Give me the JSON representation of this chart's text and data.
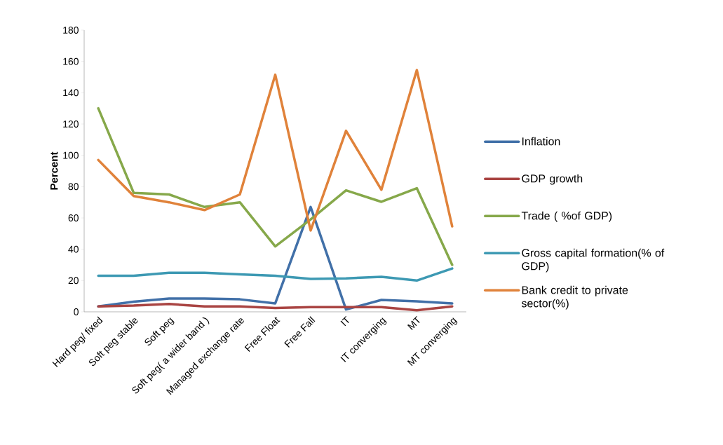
{
  "chart_data": {
    "type": "line",
    "ylabel": "Percent",
    "categories": [
      "Hard peg/ fixed",
      "Soft peg stable",
      "Soft peg",
      "Soft peg( a wider band )",
      "Managed exchange rate",
      "Free Float",
      "Free Fall",
      "IT",
      "IT converging",
      "MT",
      "MT converging"
    ],
    "series": [
      {
        "name": "Inflation",
        "color": "#4170a8",
        "values": [
          3.5,
          6.5,
          8.5,
          8.5,
          8,
          5.4,
          67,
          1.5,
          7.6,
          6.7,
          5.4
        ]
      },
      {
        "name": "GDP growth",
        "color": "#a94442",
        "values": [
          3.5,
          4,
          5,
          3.5,
          3.5,
          2.5,
          3,
          3,
          3,
          1,
          3.5
        ]
      },
      {
        "name": "Trade ( %of GDP)",
        "color": "#86a84a",
        "values": [
          130,
          76,
          75,
          67,
          70,
          41.8,
          59,
          77.6,
          70.3,
          79,
          30
        ]
      },
      {
        "name": "Gross capital formation(% of GDP)",
        "color": "#3d99b3",
        "values": [
          23,
          23,
          25,
          25,
          24,
          23,
          21,
          21.4,
          22.4,
          20,
          27.7
        ]
      },
      {
        "name": "Bank credit to private sector(%)",
        "color": "#e0823a",
        "values": [
          97,
          74,
          70,
          65,
          75,
          151.5,
          52,
          115.7,
          78,
          154.5,
          54.6
        ]
      }
    ],
    "ylim": [
      0,
      180
    ],
    "yticks": [
      0,
      20,
      40,
      60,
      80,
      100,
      120,
      140,
      160,
      180
    ],
    "legend": "right"
  }
}
